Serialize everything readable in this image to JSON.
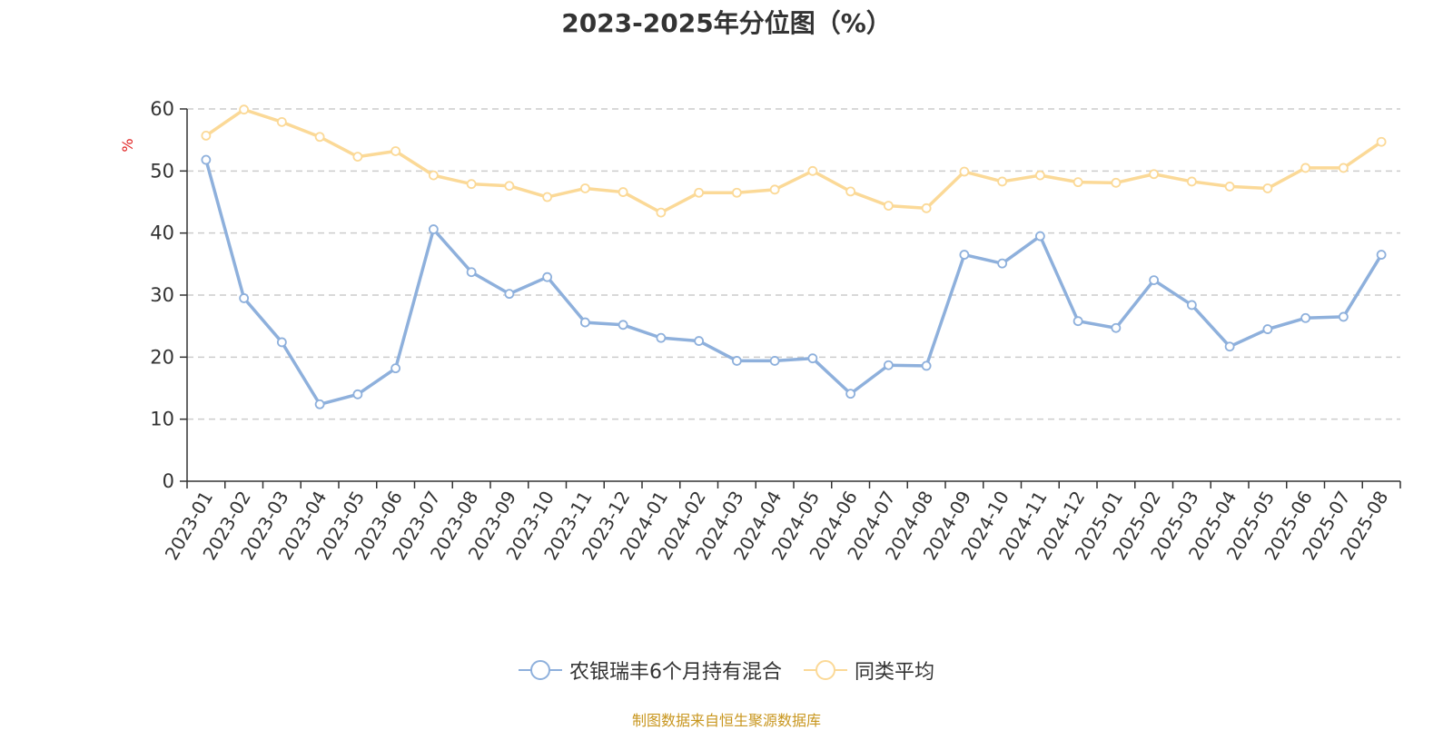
{
  "chart_data": {
    "type": "line",
    "title": "2023-2025年分位图（%）",
    "ylabel": "%",
    "ylim": [
      0,
      60
    ],
    "yticks": [
      0,
      10,
      20,
      30,
      40,
      50,
      60
    ],
    "grid": true,
    "legend_position": "bottom",
    "categories": [
      "2023-01",
      "2023-02",
      "2023-03",
      "2023-04",
      "2023-05",
      "2023-06",
      "2023-07",
      "2023-08",
      "2023-09",
      "2023-10",
      "2023-11",
      "2023-12",
      "2024-01",
      "2024-02",
      "2024-03",
      "2024-04",
      "2024-05",
      "2024-06",
      "2024-07",
      "2024-08",
      "2024-09",
      "2024-10",
      "2024-11",
      "2024-12",
      "2025-01",
      "2025-02",
      "2025-03",
      "2025-04",
      "2025-05",
      "2025-06",
      "2025-07",
      "2025-08"
    ],
    "series": [
      {
        "name": "农银瑞丰6个月持有混合",
        "color": "#8eb0dc",
        "values": [
          51.8,
          29.5,
          22.4,
          12.4,
          14.0,
          18.2,
          40.6,
          33.7,
          30.2,
          32.9,
          25.6,
          25.2,
          23.1,
          22.6,
          19.4,
          19.4,
          19.8,
          14.1,
          18.7,
          18.6,
          36.5,
          35.1,
          39.5,
          25.8,
          24.7,
          32.4,
          28.4,
          21.7,
          24.5,
          26.3,
          26.5,
          36.5
        ]
      },
      {
        "name": "同类平均",
        "color": "#fbd997",
        "values": [
          55.7,
          59.9,
          57.9,
          55.5,
          52.3,
          53.2,
          49.3,
          47.9,
          47.6,
          45.8,
          47.2,
          46.6,
          43.3,
          46.5,
          46.5,
          47.0,
          50.0,
          46.7,
          44.4,
          44.0,
          49.9,
          48.3,
          49.3,
          48.2,
          48.1,
          49.5,
          48.3,
          47.5,
          47.2,
          50.5,
          50.5,
          54.7
        ]
      }
    ]
  },
  "source_text": "制图数据来自恒生聚源数据库"
}
